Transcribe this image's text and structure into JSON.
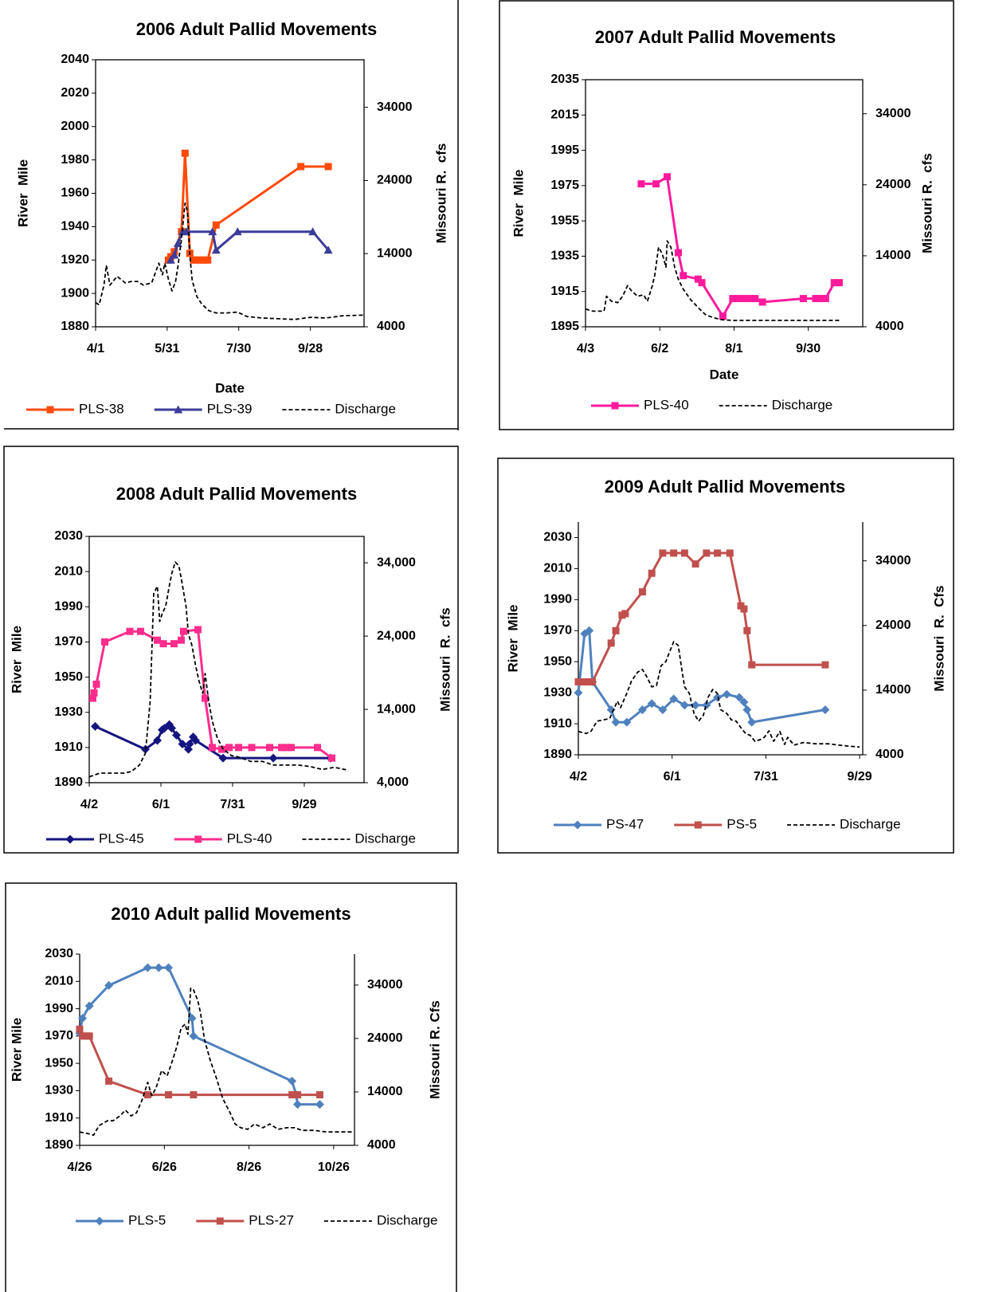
{
  "chart_data": [
    {
      "type": "line",
      "title": "2006 Adult Pallid Movements",
      "x_label": "Date",
      "y_label": "River  Mile",
      "y2_label": "Missouri R.  cfs",
      "frame": true,
      "xlim": [
        "4/1",
        "11/12"
      ],
      "xticks": [
        "4/1",
        "5/31",
        "7/30",
        "9/28"
      ],
      "ylim": [
        1880,
        2040
      ],
      "yticks": [
        1880,
        1900,
        1920,
        1940,
        1960,
        1980,
        2000,
        2020,
        2040
      ],
      "y2lim": [
        4000,
        40500
      ],
      "y2ticks": [
        4000,
        14000,
        24000,
        34000
      ],
      "series": [
        {
          "name": "PLS-38",
          "color": "#ff4a0a",
          "marker": "square",
          "x": [
            "6/1",
            "6/3",
            "6/6",
            "6/12",
            "6/15",
            "6/19",
            "6/22",
            "6/25",
            "6/28",
            "7/1",
            "7/4",
            "7/11",
            "9/20",
            "10/13"
          ],
          "values": [
            1920,
            1922,
            1925,
            1937,
            1984,
            1924,
            1920,
            1920,
            1920,
            1920,
            1920,
            1941,
            1976,
            1976
          ]
        },
        {
          "name": "PLS-39",
          "color": "#3c3c9a",
          "marker": "triangle",
          "x": [
            "6/3",
            "6/6",
            "6/9",
            "6/13",
            "6/16",
            "7/8",
            "7/11",
            "7/29",
            "9/30",
            "10/13"
          ],
          "values": [
            1920,
            1923,
            1930,
            1937,
            1937,
            1937,
            1926,
            1937,
            1937,
            1926
          ]
        },
        {
          "name": "Discharge",
          "color": "#000000",
          "dash": true,
          "axis": "y2",
          "x": [
            "4/1",
            "4/4",
            "4/8",
            "4/10",
            "4/13",
            "4/16",
            "4/19",
            "4/22",
            "4/26",
            "5/1",
            "5/6",
            "5/11",
            "5/18",
            "5/22",
            "5/24",
            "5/27",
            "5/29",
            "6/1",
            "6/4",
            "6/7",
            "6/9",
            "6/12",
            "6/15",
            "6/17",
            "6/19",
            "6/21",
            "6/25",
            "6/29",
            "7/5",
            "7/11",
            "7/20",
            "7/29",
            "8/6",
            "8/19",
            "9/1",
            "9/15",
            "9/28",
            "10/11",
            "10/25",
            "11/12"
          ],
          "values": [
            7300,
            7000,
            9700,
            12400,
            9700,
            10300,
            10900,
            10500,
            10000,
            10200,
            10200,
            9700,
            10000,
            11800,
            12700,
            11100,
            12700,
            10500,
            8900,
            10200,
            12200,
            16000,
            20900,
            19800,
            13800,
            10300,
            8100,
            7100,
            6200,
            5900,
            5900,
            6000,
            5400,
            5200,
            5100,
            5000,
            5300,
            5200,
            5500,
            5600
          ]
        }
      ]
    },
    {
      "type": "line",
      "title": "2007  Adult Pallid Movements",
      "x_label": "Date",
      "y_label": "River  Mile",
      "y2_label": "Missouri R.  cfs",
      "frame": true,
      "xlim": [
        "4/3",
        "11/13"
      ],
      "xticks": [
        "4/3",
        "6/2",
        "8/1",
        "9/30"
      ],
      "ylim": [
        1895,
        2035
      ],
      "yticks": [
        1895,
        1915,
        1935,
        1955,
        1975,
        1995,
        2015,
        2035
      ],
      "y2lim": [
        4000,
        38800
      ],
      "y2ticks": [
        4000,
        14000,
        24000,
        34000
      ],
      "series": [
        {
          "name": "PLS-40",
          "color": "#ff1a9c",
          "marker": "square",
          "x": [
            "5/18",
            "5/30",
            "6/8",
            "6/17",
            "6/21",
            "7/3",
            "7/6",
            "7/23",
            "7/31",
            "8/5",
            "8/10",
            "8/14",
            "8/18",
            "8/24",
            "9/26",
            "10/6",
            "10/9",
            "10/14",
            "10/21",
            "10/25"
          ],
          "values": [
            1976,
            1976,
            1980,
            1937,
            1924,
            1922,
            1920,
            1901,
            1911,
            1911,
            1911,
            1911,
            1911,
            1909,
            1911,
            1911,
            1911,
            1911,
            1920,
            1920
          ]
        },
        {
          "name": "Discharge",
          "color": "#000000",
          "dash": true,
          "axis": "y2",
          "x": [
            "4/3",
            "4/9",
            "4/18",
            "4/20",
            "4/24",
            "4/29",
            "5/3",
            "5/7",
            "5/10",
            "5/15",
            "5/20",
            "5/23",
            "5/27",
            "5/29",
            "6/1",
            "6/4",
            "6/7",
            "6/8",
            "6/11",
            "6/14",
            "6/17",
            "6/21",
            "6/27",
            "7/3",
            "7/9",
            "7/15",
            "7/22",
            "7/31",
            "8/13",
            "9/20",
            "10/26"
          ],
          "values": [
            6500,
            6200,
            6200,
            8300,
            7600,
            7400,
            8300,
            9800,
            9100,
            8300,
            8500,
            7600,
            9800,
            11300,
            15200,
            14300,
            12400,
            16100,
            15200,
            12400,
            10700,
            9300,
            7800,
            6700,
            5700,
            5300,
            5000,
            4900,
            4900,
            4900,
            4900
          ]
        }
      ]
    },
    {
      "type": "line",
      "title": "2008  Adult Pallid Movements",
      "y_label": "River  Mile",
      "y2_label": "Missouri  R.  cfs",
      "frame": true,
      "xlim": [
        "4/2",
        "11/18"
      ],
      "xticks": [
        "4/2",
        "6/1",
        "7/31",
        "9/29"
      ],
      "ylim": [
        1890,
        2030
      ],
      "yticks": [
        1890,
        1910,
        1930,
        1950,
        1970,
        1990,
        2010,
        2030
      ],
      "y2lim": [
        4000,
        37600
      ],
      "y2ticks": [
        {
          "value": 4000,
          "label": "4,000"
        },
        {
          "value": 14000,
          "label": "14,000"
        },
        {
          "value": 24000,
          "label": "24,000"
        },
        {
          "value": 34000,
          "label": "34,000"
        }
      ],
      "series": [
        {
          "name": "PLS-45",
          "color": "#15157f",
          "marker": "diamond",
          "x": [
            "4/7",
            "5/19",
            "5/29",
            "6/2",
            "6/4",
            "6/8",
            "6/10",
            "6/14",
            "6/19",
            "6/24",
            "6/25",
            "6/28",
            "6/30",
            "7/23",
            "9/3",
            "10/21"
          ],
          "values": [
            1922,
            1909,
            1914,
            1920,
            1921,
            1923,
            1921,
            1917,
            1912,
            1909,
            1912,
            1916,
            1914,
            1904,
            1904,
            1904
          ]
        },
        {
          "name": "PLS-40",
          "color": "#ff2d8c",
          "marker": "square",
          "x": [
            "4/5",
            "4/6",
            "4/8",
            "4/15",
            "5/6",
            "5/15",
            "5/29",
            "6/3",
            "6/12",
            "6/18",
            "6/20",
            "7/2",
            "7/8",
            "7/14",
            "7/22",
            "7/28",
            "8/5",
            "8/16",
            "8/31",
            "9/10",
            "9/14",
            "9/18",
            "10/10",
            "10/22"
          ],
          "values": [
            1938,
            1941,
            1946,
            1970,
            1976,
            1976,
            1971,
            1969,
            1969,
            1971,
            1976,
            1977,
            1938,
            1910,
            1909,
            1910,
            1910,
            1910,
            1910,
            1910,
            1910,
            1910,
            1910,
            1904
          ]
        },
        {
          "name": "Discharge",
          "color": "#000000",
          "dash": true,
          "axis": "y2",
          "x": [
            "4/2",
            "4/11",
            "4/21",
            "5/1",
            "5/7",
            "5/14",
            "5/19",
            "5/23",
            "5/26",
            "5/29",
            "5/31",
            "6/2",
            "6/5",
            "6/8",
            "6/10",
            "6/13",
            "6/16",
            "6/18",
            "6/22",
            "6/24",
            "6/27",
            "6/30",
            "7/3",
            "7/6",
            "7/8",
            "7/11",
            "7/14",
            "7/18",
            "7/23",
            "7/30",
            "8/5",
            "8/15",
            "8/25",
            "9/3",
            "9/14",
            "9/24",
            "10/4",
            "10/14",
            "10/24",
            "11/5"
          ],
          "values": [
            4800,
            5300,
            5300,
            5300,
            5500,
            6400,
            8000,
            15100,
            29800,
            30800,
            26000,
            27000,
            28100,
            30800,
            32500,
            34100,
            33600,
            31900,
            28100,
            24300,
            22700,
            20000,
            17800,
            16200,
            18900,
            15100,
            12400,
            10200,
            8600,
            7700,
            7500,
            6900,
            6900,
            6400,
            6400,
            6400,
            6200,
            5800,
            6100,
            5700
          ]
        }
      ]
    },
    {
      "type": "line",
      "title": "2009   Adult Pallid Movements",
      "y_label": "River  Mile",
      "y2_label": "Missouri  R.  Cfs",
      "frame": false,
      "xlim": [
        "4/2",
        "10/1"
      ],
      "xticks": [
        "4/2",
        "6/1",
        "7/31",
        "9/29"
      ],
      "ylim": [
        1890,
        2040
      ],
      "yticks": [
        1890,
        1910,
        1930,
        1950,
        1970,
        1990,
        2010,
        2030
      ],
      "y2lim": [
        4000,
        40000
      ],
      "y2ticks": [
        4000,
        14000,
        24000,
        34000
      ],
      "series": [
        {
          "name": "PS-47",
          "color": "#4f81bd",
          "marker": "diamond",
          "x": [
            "4/2",
            "4/6",
            "4/9",
            "4/11",
            "4/23",
            "4/26",
            "5/3",
            "5/13",
            "5/19",
            "5/26",
            "6/2",
            "6/9",
            "6/16",
            "6/23",
            "6/30",
            "7/6",
            "7/14",
            "7/17",
            "7/19",
            "7/22",
            "9/7"
          ],
          "values": [
            1930,
            1968,
            1970,
            1937,
            1919,
            1911,
            1911,
            1919,
            1923,
            1919,
            1926,
            1922,
            1922,
            1922,
            1927,
            1929,
            1927,
            1924,
            1919,
            1911,
            1919
          ]
        },
        {
          "name": "PS-5",
          "color": "#c0504d",
          "marker": "square",
          "x": [
            "4/2",
            "4/5",
            "4/8",
            "4/11",
            "4/23",
            "4/26",
            "4/30",
            "5/2",
            "5/13",
            "5/19",
            "5/26",
            "6/2",
            "6/9",
            "6/16",
            "6/23",
            "6/30",
            "7/8",
            "7/15",
            "7/17",
            "7/19",
            "7/22",
            "9/7"
          ],
          "values": [
            1937,
            1937,
            1937,
            1937,
            1962,
            1970,
            1980,
            1981,
            1995,
            2007,
            2020,
            2020,
            2020,
            2013,
            2020,
            2020,
            2020,
            1986,
            1984,
            1970,
            1948,
            1948
          ]
        },
        {
          "name": "Discharge",
          "color": "#000000",
          "dash": true,
          "axis": "y2",
          "x": [
            "4/2",
            "4/7",
            "4/10",
            "4/14",
            "4/18",
            "4/22",
            "4/24",
            "4/27",
            "4/29",
            "5/3",
            "5/6",
            "5/10",
            "5/13",
            "5/16",
            "5/19",
            "5/22",
            "5/25",
            "5/28",
            "5/30",
            "6/2",
            "6/5",
            "6/7",
            "6/9",
            "6/12",
            "6/15",
            "6/18",
            "6/21",
            "6/24",
            "6/27",
            "6/30",
            "7/2",
            "7/6",
            "7/9",
            "7/12",
            "7/15",
            "7/18",
            "7/21",
            "7/24",
            "7/27",
            "7/30",
            "8/2",
            "8/5",
            "8/9",
            "8/12",
            "8/14",
            "8/18",
            "8/24",
            "9/1",
            "9/9",
            "9/19",
            "9/29"
          ],
          "values": [
            7600,
            7300,
            7600,
            9200,
            9400,
            9600,
            10700,
            12300,
            11300,
            13500,
            15400,
            16800,
            17200,
            16000,
            14500,
            14700,
            17800,
            18400,
            19700,
            21500,
            20900,
            17500,
            14500,
            13500,
            10400,
            9200,
            10100,
            12900,
            14100,
            13500,
            11000,
            10400,
            9400,
            9200,
            8200,
            7300,
            7000,
            6100,
            6300,
            6700,
            7700,
            6100,
            7600,
            5600,
            6700,
            5500,
            5900,
            5700,
            5700,
            5400,
            5200
          ]
        }
      ]
    },
    {
      "type": "line",
      "title": "2010 Adult pallid Movements",
      "y_label": "River Mile",
      "y2_label": "Missouri R. Cfs",
      "frame": false,
      "xlim": [
        "4/26",
        "11/10"
      ],
      "xticks": [
        "4/26",
        "6/26",
        "8/26",
        "10/26"
      ],
      "ylim": [
        1890,
        2030
      ],
      "yticks": [
        1890,
        1910,
        1930,
        1950,
        1970,
        1990,
        2010,
        2030
      ],
      "y2lim": [
        4000,
        39800
      ],
      "y2ticks": [
        4000,
        14000,
        24000,
        34000
      ],
      "series": [
        {
          "name": "PLS-5",
          "color": "#4f81bd",
          "marker": "diamond",
          "x": [
            "4/26",
            "4/28",
            "5/3",
            "5/17",
            "6/14",
            "6/22",
            "6/29",
            "7/16",
            "7/17",
            "9/26",
            "9/29",
            "9/30",
            "10/16"
          ],
          "values": [
            1972,
            1983,
            1992,
            2007,
            2020,
            2020,
            2020,
            1983,
            1970,
            1937,
            1927,
            1920,
            1920
          ]
        },
        {
          "name": "PLS-27",
          "color": "#c0504d",
          "marker": "square",
          "x": [
            "4/26",
            "4/28",
            "5/1",
            "5/3",
            "5/17",
            "6/14",
            "6/29",
            "7/17",
            "9/26",
            "9/30",
            "10/16"
          ],
          "values": [
            1975,
            1970,
            1970,
            1970,
            1937,
            1927,
            1927,
            1927,
            1927,
            1927,
            1927
          ]
        },
        {
          "name": "Discharge",
          "color": "#000000",
          "dash": true,
          "axis": "y2",
          "x": [
            "4/26",
            "5/2",
            "5/6",
            "5/10",
            "5/16",
            "5/20",
            "5/25",
            "5/29",
            "6/2",
            "6/6",
            "6/10",
            "6/14",
            "6/17",
            "6/20",
            "6/24",
            "6/28",
            "7/1",
            "7/5",
            "7/8",
            "7/11",
            "7/13",
            "7/15",
            "7/17",
            "7/20",
            "7/22",
            "7/25",
            "7/29",
            "8/3",
            "8/7",
            "8/12",
            "8/16",
            "8/20",
            "8/25",
            "8/30",
            "9/5",
            "9/10",
            "9/16",
            "9/22",
            "9/28",
            "10/3",
            "10/12",
            "10/21",
            "10/29",
            "11/10"
          ],
          "values": [
            6500,
            6200,
            5900,
            7700,
            8600,
            8600,
            9500,
            10600,
            9500,
            10100,
            12500,
            15800,
            13300,
            14700,
            18000,
            17000,
            19200,
            22500,
            25900,
            26700,
            24800,
            33400,
            33100,
            31200,
            28900,
            23700,
            20000,
            16200,
            12800,
            10300,
            8000,
            7300,
            7000,
            8000,
            7300,
            8000,
            7000,
            7300,
            7300,
            6800,
            6800,
            6500,
            6500,
            6500
          ]
        }
      ]
    }
  ]
}
